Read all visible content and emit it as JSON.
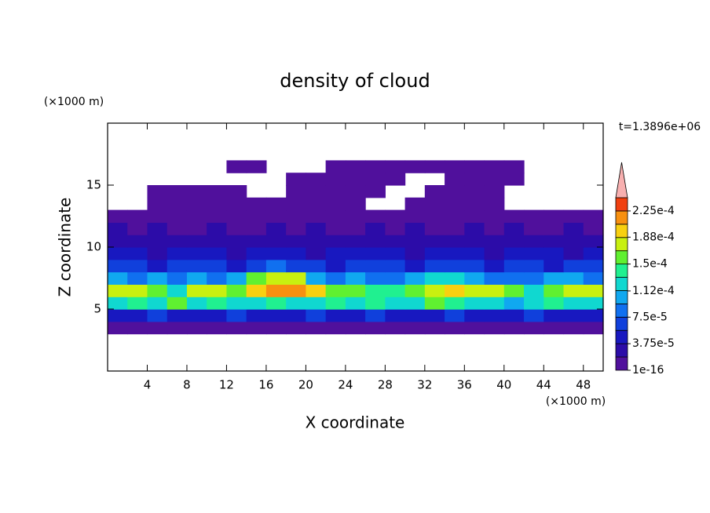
{
  "chart_data": {
    "type": "contour",
    "title": "density of cloud",
    "time_label": "t=1.3896e+06",
    "xlabel": "X coordinate",
    "ylabel": "Z coordinate",
    "x_unit": "(×1000 m)",
    "y_unit": "(×1000 m)",
    "xlim": [
      0,
      50
    ],
    "ylim": [
      0,
      20
    ],
    "xticks": [
      4,
      8,
      12,
      16,
      20,
      24,
      28,
      32,
      36,
      40,
      44,
      48
    ],
    "yticks": [
      5,
      10,
      15
    ],
    "x": [
      1,
      3,
      5,
      7,
      9,
      11,
      13,
      15,
      17,
      19,
      21,
      23,
      25,
      27,
      29,
      31,
      33,
      35,
      37,
      39,
      41,
      43,
      45,
      47,
      49
    ],
    "z": [
      3.5,
      4.5,
      5.5,
      6.5,
      7.5,
      8.5,
      9.5,
      10.5,
      11.5,
      12.5,
      13.5,
      14.5,
      15.5,
      16.5
    ],
    "values": [
      [
        1.2e-05,
        1.2e-05,
        1.2e-05,
        1.2e-05,
        1.2e-05,
        1.2e-05,
        1.2e-05,
        1.2e-05,
        1.2e-05,
        1.2e-05,
        1.2e-05,
        1.2e-05,
        1.2e-05,
        1.2e-05,
        1.2e-05,
        1.2e-05,
        1.2e-05,
        1.2e-05,
        1.2e-05,
        1.2e-05,
        1.2e-05,
        1.2e-05,
        1.2e-05,
        1.2e-05,
        1.2e-05
      ],
      [
        5e-05,
        4e-05,
        6e-05,
        5e-05,
        4e-05,
        5e-05,
        6e-05,
        4e-05,
        5e-05,
        5e-05,
        6e-05,
        4e-05,
        5e-05,
        6e-05,
        5e-05,
        4e-05,
        5e-05,
        6e-05,
        5e-05,
        4e-05,
        5e-05,
        6e-05,
        5e-05,
        4e-05,
        5e-05
      ],
      [
        0.00013,
        0.00014,
        0.00012,
        0.00015,
        0.00013,
        0.00014,
        0.00012,
        0.00013,
        0.00014,
        0.00013,
        0.00012,
        0.00014,
        0.00013,
        0.00014,
        0.00012,
        0.00013,
        0.00015,
        0.00014,
        0.00013,
        0.00012,
        0.00011,
        0.00013,
        0.00014,
        0.00012,
        0.00013
      ],
      [
        0.00017,
        0.00018,
        0.00016,
        0.00013,
        0.00017,
        0.00018,
        0.00015,
        0.00019,
        0.00021,
        0.00022,
        0.00019,
        0.00016,
        0.00015,
        0.00014,
        0.00014,
        0.00015,
        0.00018,
        0.00019,
        0.00018,
        0.00017,
        0.00015,
        0.00012,
        0.00016,
        0.00017,
        0.00018
      ],
      [
        0.0001,
        9e-05,
        0.00011,
        8e-05,
        0.0001,
        9e-05,
        0.0001,
        0.00016,
        0.00018,
        0.00017,
        0.00011,
        9e-05,
        0.0001,
        9e-05,
        8e-05,
        0.0001,
        0.00012,
        0.00013,
        0.00011,
        9e-05,
        8e-05,
        9e-05,
        0.0001,
        0.00011,
        9e-05
      ],
      [
        6e-05,
        7e-05,
        5e-05,
        6e-05,
        7e-05,
        6e-05,
        5e-05,
        7e-05,
        8e-05,
        7e-05,
        6e-05,
        5e-05,
        6e-05,
        7e-05,
        6e-05,
        5e-05,
        6e-05,
        7e-05,
        6e-05,
        5e-05,
        7e-05,
        6e-05,
        5e-05,
        6e-05,
        7e-05
      ],
      [
        4e-05,
        5e-05,
        3e-05,
        4e-05,
        5e-05,
        4e-05,
        3e-05,
        4e-05,
        5e-05,
        4e-05,
        3e-05,
        4e-05,
        4e-05,
        5e-05,
        4e-05,
        3e-05,
        4e-05,
        5e-05,
        4e-05,
        3e-05,
        4e-05,
        5e-05,
        4e-05,
        3e-05,
        4e-05
      ],
      [
        2.5e-05,
        3e-05,
        2e-05,
        2.5e-05,
        3e-05,
        2e-05,
        2.5e-05,
        2e-05,
        3e-05,
        2.5e-05,
        2e-05,
        2.5e-05,
        3e-05,
        2e-05,
        2.5e-05,
        2e-05,
        3e-05,
        2.5e-05,
        2e-05,
        2.5e-05,
        3e-05,
        2e-05,
        2.5e-05,
        2e-05,
        2.5e-05
      ],
      [
        2e-05,
        1.5e-05,
        2e-05,
        1.5e-05,
        1.5e-05,
        2e-05,
        1.5e-05,
        1.5e-05,
        2e-05,
        1.5e-05,
        2e-05,
        1.5e-05,
        1.5e-05,
        2e-05,
        1.5e-05,
        2e-05,
        1.5e-05,
        1.5e-05,
        2e-05,
        1.5e-05,
        2e-05,
        1.5e-05,
        1.5e-05,
        2e-05,
        1.5e-05
      ],
      [
        8e-06,
        8e-06,
        8e-06,
        8e-06,
        8e-06,
        8e-06,
        8e-06,
        8e-06,
        8e-06,
        8e-06,
        8e-06,
        8e-06,
        8e-06,
        8e-06,
        8e-06,
        8e-06,
        8e-06,
        8e-06,
        8e-06,
        8e-06,
        8e-06,
        8e-06,
        8e-06,
        8e-06,
        8e-06
      ],
      [
        null,
        null,
        5e-06,
        5e-06,
        5e-06,
        5e-06,
        5e-06,
        5e-06,
        5e-06,
        5e-06,
        5e-06,
        5e-06,
        5e-06,
        null,
        null,
        5e-06,
        5e-06,
        5e-06,
        5e-06,
        5e-06,
        null,
        null,
        null,
        null,
        null
      ],
      [
        null,
        null,
        5e-06,
        5e-06,
        5e-06,
        5e-06,
        5e-06,
        null,
        null,
        5e-06,
        5e-06,
        5e-06,
        5e-06,
        5e-06,
        null,
        null,
        5e-06,
        5e-06,
        5e-06,
        5e-06,
        null,
        null,
        null,
        null,
        null
      ],
      [
        null,
        null,
        null,
        null,
        null,
        null,
        null,
        null,
        null,
        5e-06,
        5e-06,
        5e-06,
        5e-06,
        5e-06,
        5e-06,
        null,
        null,
        5e-06,
        5e-06,
        5e-06,
        5e-06,
        null,
        null,
        null,
        null
      ],
      [
        null,
        null,
        null,
        null,
        null,
        null,
        5e-06,
        5e-06,
        null,
        null,
        null,
        5e-06,
        5e-06,
        5e-06,
        5e-06,
        5e-06,
        5e-06,
        5e-06,
        5e-06,
        5e-06,
        5e-06,
        null,
        null,
        null,
        null
      ]
    ],
    "levels": [
      1e-16,
      1.875e-05,
      3.75e-05,
      5.625e-05,
      7.5e-05,
      9.375e-05,
      0.0001125,
      0.00013125,
      0.00015,
      0.00016875,
      0.0001875,
      0.00020625,
      0.000225
    ],
    "clim": [
      1e-16,
      0.00024375
    ],
    "colors": [
      "#50109c",
      "#2c0ca8",
      "#1818c0",
      "#1040dc",
      "#1070f0",
      "#10a8f0",
      "#10d8d0",
      "#20f090",
      "#60f030",
      "#c8f010",
      "#f8d010",
      "#f89010",
      "#f04010"
    ],
    "over_color": "#f8b0b0",
    "cticks": [
      {
        "value": 1e-16,
        "label": "1e-16"
      },
      {
        "value": 3.75e-05,
        "label": "3.75e-5"
      },
      {
        "value": 7.5e-05,
        "label": "7.5e-5"
      },
      {
        "value": 0.000112,
        "label": "1.12e-4"
      },
      {
        "value": 0.00015,
        "label": "1.5e-4"
      },
      {
        "value": 0.000188,
        "label": "1.88e-4"
      },
      {
        "value": 0.000225,
        "label": "2.25e-4"
      }
    ]
  }
}
